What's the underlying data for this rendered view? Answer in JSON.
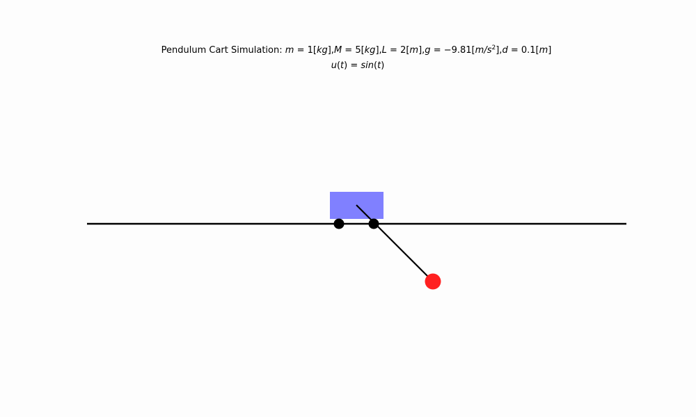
{
  "title": {
    "prefix": "Pendulum Cart Simulation: ",
    "m_label": "m",
    "m_value": " = 1[",
    "m_unit": "kg",
    "m_close": "],",
    "M_label": "M",
    "M_value": " = 5[",
    "M_unit": "kg",
    "M_close": "],",
    "L_label": "L",
    "L_value": " = 2[",
    "L_unit": "m",
    "L_close": "],",
    "g_label": "g",
    "g_value": " = −9.81[",
    "g_unit_m": "m",
    "g_unit_sep": "/",
    "g_unit_s": "s",
    "g_unit_exp": "2",
    "g_close": "],",
    "d_label": "d",
    "d_value": " = 0.1[",
    "d_unit": "m",
    "d_close": "]",
    "input_u": "u",
    "input_open": "(",
    "input_t": "t",
    "input_mid": ") = ",
    "input_fn": "sin",
    "input_open2": "(",
    "input_t2": "t",
    "input_close2": ")"
  },
  "colors": {
    "background": "#fdfdfd",
    "cart": "#8080ff",
    "wheel": "#000000",
    "track": "#000000",
    "rod": "#000000",
    "bob": "#ff2020"
  },
  "state": {
    "pendulum_angle_deg_from_down": 45
  }
}
